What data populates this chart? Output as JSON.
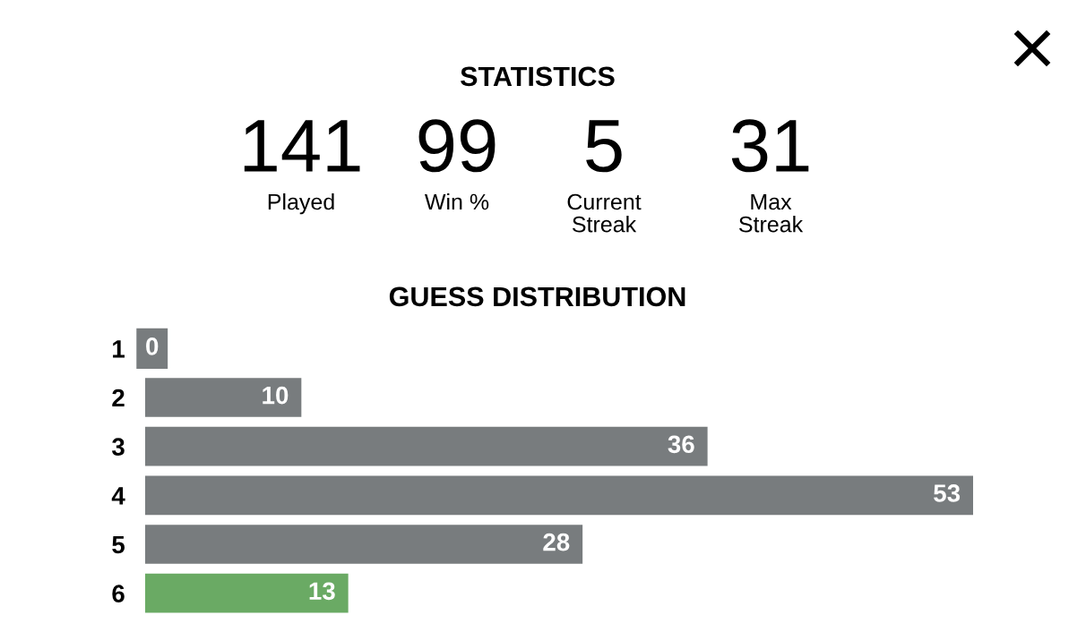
{
  "chart_data": [
    {
      "type": "other",
      "title": "STATISTICS",
      "annotations": [
        "141",
        "Played",
        "99",
        "Win %",
        "5",
        "Current\nStreak",
        "31",
        "Max\nStreak"
      ]
    },
    {
      "type": "bar",
      "title": "GUESS DISTRIBUTION",
      "orientation": "horizontal",
      "categories": [
        "1",
        "2",
        "3",
        "4",
        "5",
        "6"
      ],
      "values": [
        0,
        10,
        36,
        53,
        28,
        13
      ],
      "colors": [
        "#787c7e",
        "#787c7e",
        "#787c7e",
        "#787c7e",
        "#787c7e",
        "#6aaa64"
      ],
      "data_labels": true,
      "grid": false,
      "legend": false
    }
  ]
}
